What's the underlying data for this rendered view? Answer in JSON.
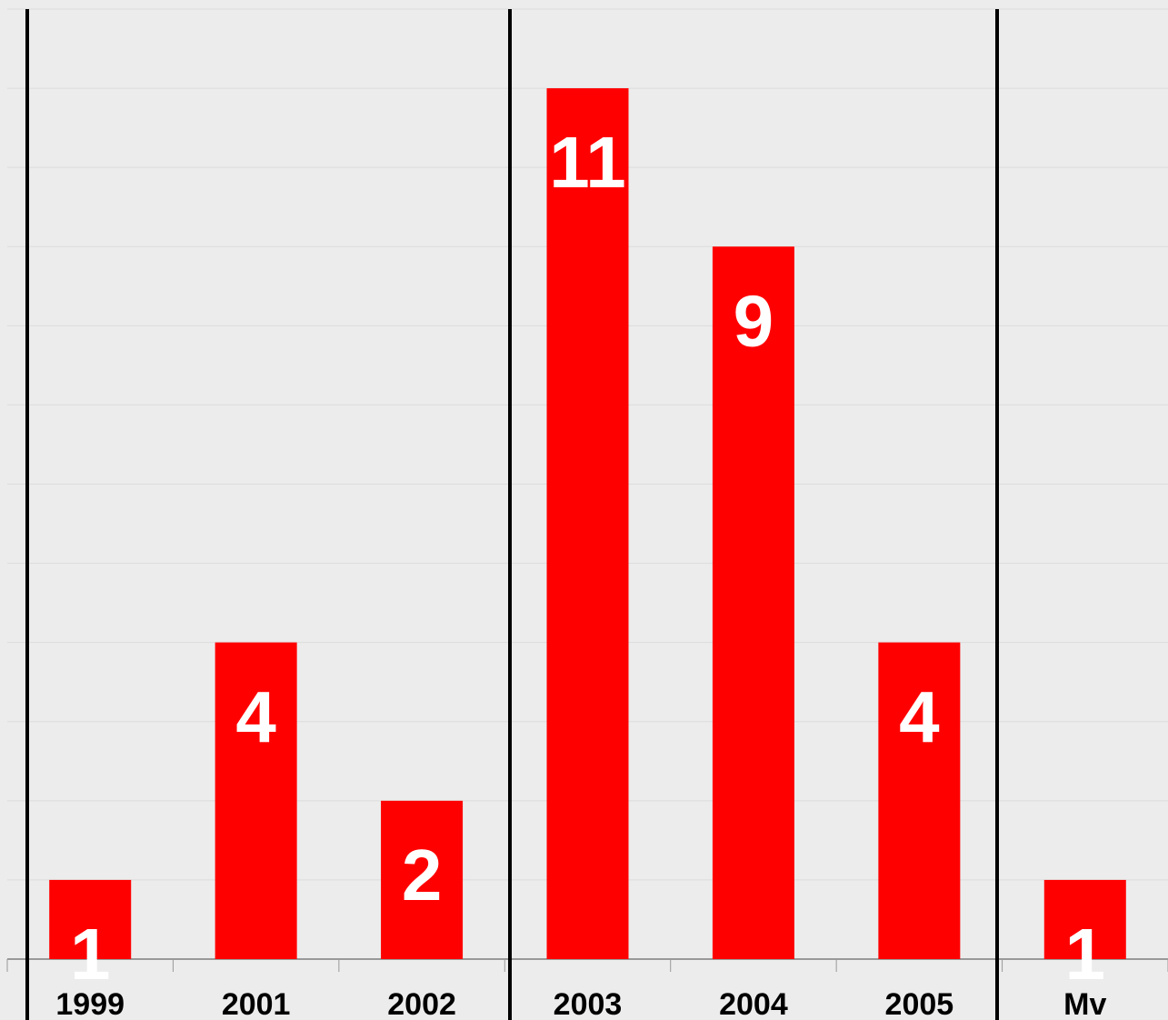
{
  "chart_data": {
    "type": "bar",
    "categories": [
      "1999",
      "2001",
      "2002",
      "2003",
      "2004",
      "2005",
      "Mv"
    ],
    "values": [
      1,
      4,
      2,
      11,
      9,
      4,
      1
    ],
    "color": "#ff0000",
    "ylim": [
      0,
      12
    ],
    "yticks": [
      0,
      1,
      2,
      3,
      4,
      5,
      6,
      7,
      8,
      9,
      10,
      11,
      12
    ],
    "grid": true
  }
}
